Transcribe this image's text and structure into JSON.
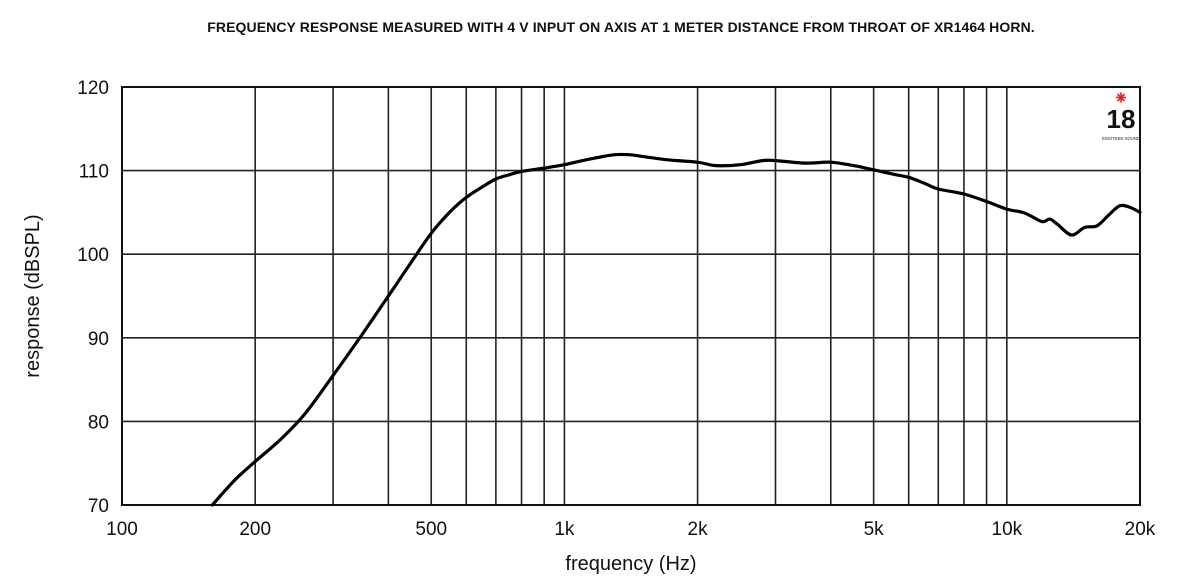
{
  "chart_data": {
    "type": "line",
    "title": "FREQUENCY RESPONSE MEASURED WITH 4 V INPUT ON AXIS AT 1 METER DISTANCE FROM THROAT OF XR1464 HORN.",
    "xlabel": "frequency (Hz)",
    "ylabel": "response (dBSPL)",
    "x_scale": "log",
    "xlim": [
      100,
      20000
    ],
    "ylim": [
      70,
      120
    ],
    "x_ticks": [
      {
        "value": 100,
        "label": "100"
      },
      {
        "value": 200,
        "label": "200"
      },
      {
        "value": 500,
        "label": "500"
      },
      {
        "value": 1000,
        "label": "1k"
      },
      {
        "value": 2000,
        "label": "2k"
      },
      {
        "value": 5000,
        "label": "5k"
      },
      {
        "value": 10000,
        "label": "10k"
      },
      {
        "value": 20000,
        "label": "20k"
      }
    ],
    "y_ticks": [
      {
        "value": 70,
        "label": "70"
      },
      {
        "value": 80,
        "label": "80"
      },
      {
        "value": 90,
        "label": "90"
      },
      {
        "value": 100,
        "label": "100"
      },
      {
        "value": 110,
        "label": "110"
      },
      {
        "value": 120,
        "label": "120"
      }
    ],
    "x_grid": [
      200,
      300,
      400,
      500,
      600,
      700,
      800,
      900,
      1000,
      2000,
      3000,
      4000,
      5000,
      6000,
      7000,
      8000,
      9000,
      10000
    ],
    "y_grid": [
      80,
      90,
      100,
      110
    ],
    "grid": true,
    "series": [
      {
        "x": [
          160,
          180,
          200,
          230,
          260,
          300,
          350,
          400,
          450,
          500,
          550,
          600,
          650,
          700,
          750,
          800,
          900,
          1000,
          1100,
          1200,
          1300,
          1400,
          1500,
          1700,
          2000,
          2200,
          2500,
          2800,
          3000,
          3500,
          4000,
          4500,
          5000,
          5500,
          6000,
          6500,
          7000,
          8000,
          9000,
          10000,
          11000,
          12000,
          12500,
          13000,
          14000,
          15000,
          16000,
          17000,
          18000,
          19000,
          20000
        ],
        "y": [
          70,
          73,
          75.2,
          78,
          81,
          85.5,
          90.5,
          95,
          99,
          102.5,
          105,
          106.8,
          108,
          109,
          109.5,
          109.9,
          110.3,
          110.7,
          111.2,
          111.6,
          111.9,
          111.9,
          111.7,
          111.3,
          111.0,
          110.6,
          110.7,
          111.2,
          111.2,
          110.9,
          111.0,
          110.6,
          110.1,
          109.6,
          109.2,
          108.5,
          107.8,
          107.2,
          106.3,
          105.4,
          104.9,
          103.9,
          104.2,
          103.6,
          102.3,
          103.2,
          103.4,
          104.7,
          105.8,
          105.6,
          105.0
        ]
      }
    ]
  },
  "logo": {
    "text": "18",
    "subtext": "EIGHTEEN SOUND",
    "accent_color": "#e02020"
  }
}
